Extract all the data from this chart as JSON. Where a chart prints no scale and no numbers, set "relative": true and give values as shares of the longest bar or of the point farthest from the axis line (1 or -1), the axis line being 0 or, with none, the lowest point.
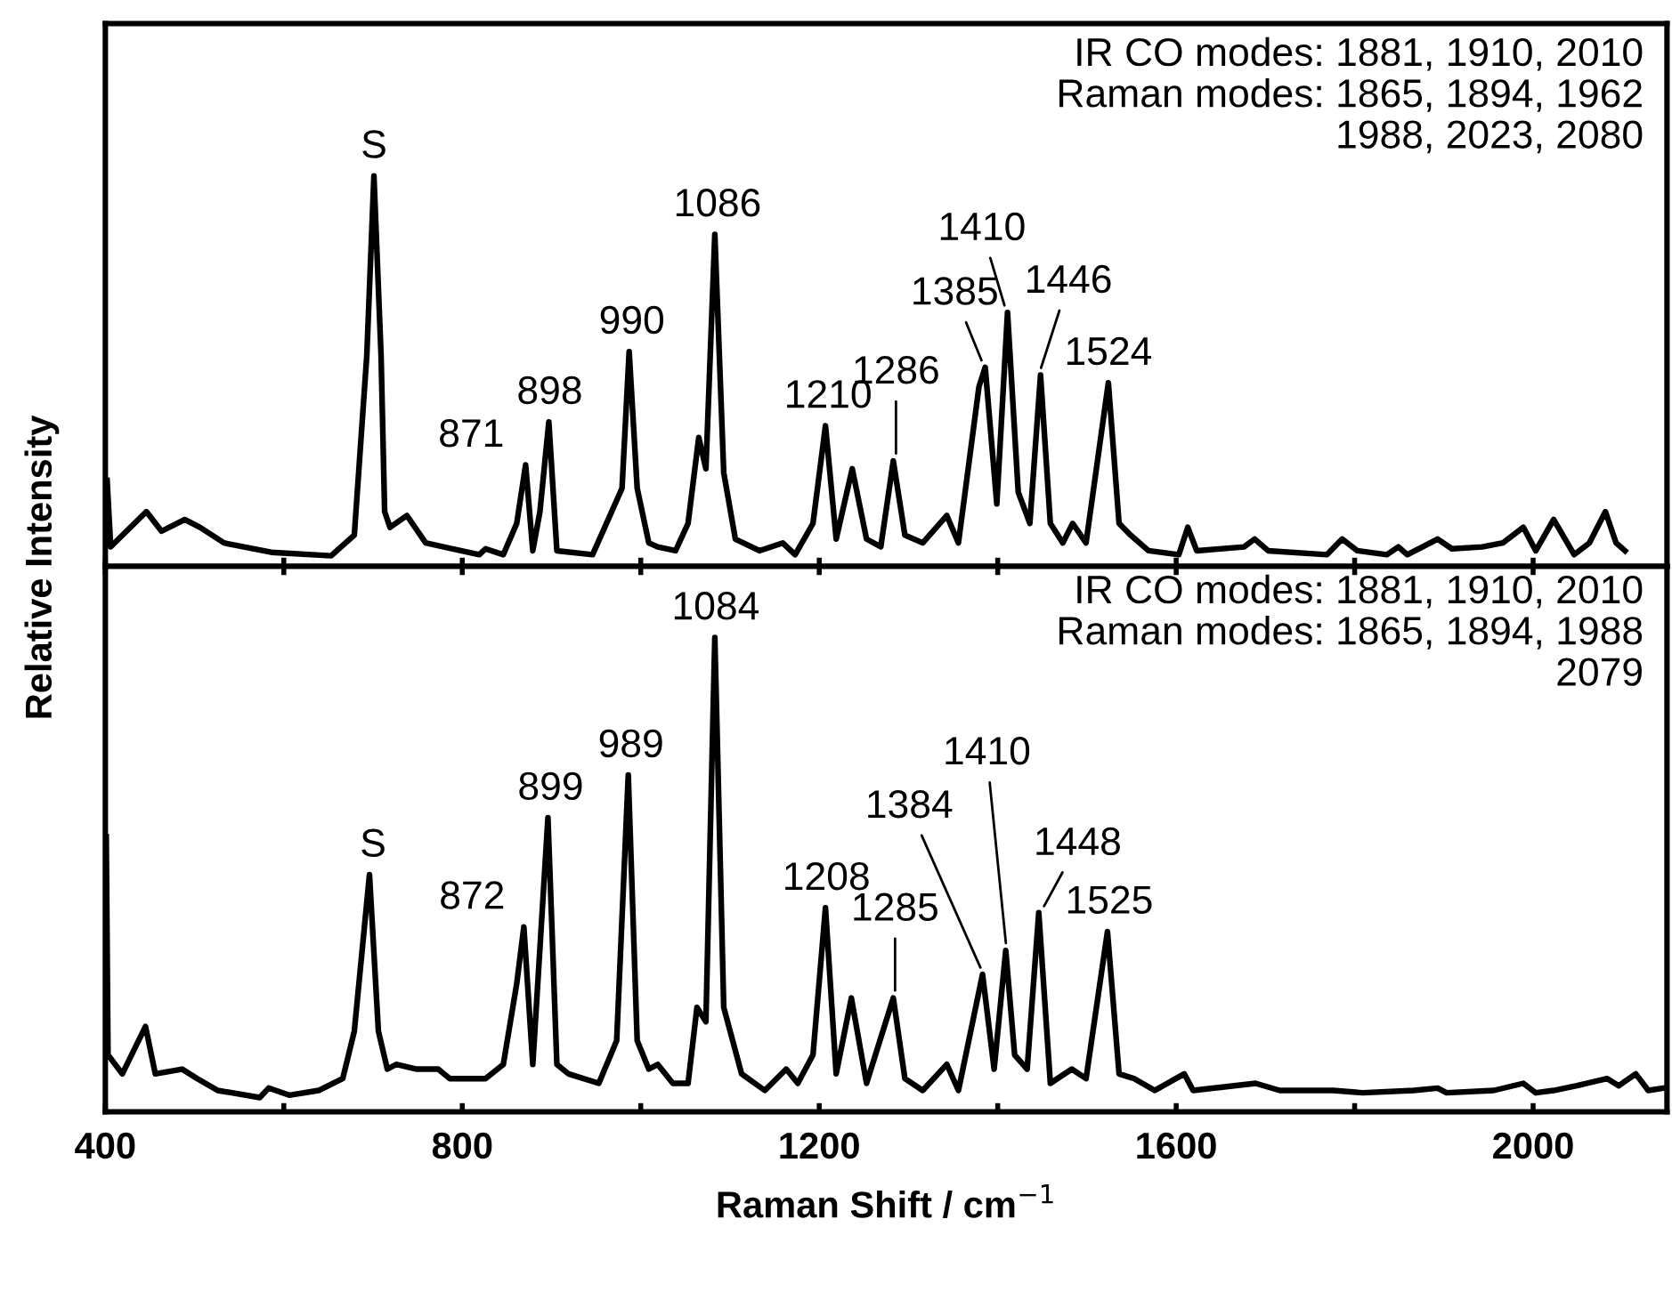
{
  "chart_data": [
    {
      "type": "line",
      "relative": true,
      "ylabel": "Relative Intensity",
      "xlim": [
        400,
        2150
      ],
      "xticks": [
        400,
        {
          "value": 600,
          "label": null
        },
        800,
        {
          "value": 1000,
          "label": null
        },
        1200,
        {
          "value": 1400,
          "label": null
        },
        1600,
        {
          "value": 1800,
          "label": null
        },
        2000
      ],
      "tick_labels": false,
      "grid": false,
      "marker": "none",
      "line_style": "solid",
      "series": [
        {
          "color": "#000000",
          "x": [
            402,
            406,
            446,
            463,
            489,
            506,
            533,
            586,
            653,
            679,
            693,
            701,
            709,
            713,
            719,
            738,
            759,
            819,
            826,
            846,
            861,
            871,
            879,
            887,
            897,
            906,
            946,
            979,
            987,
            996,
            1009,
            1019,
            1039,
            1053,
            1065,
            1073,
            1083,
            1093,
            1106,
            1133,
            1159,
            1173,
            1193,
            1207,
            1219,
            1237,
            1253,
            1269,
            1283,
            1296,
            1316,
            1343,
            1356,
            1379,
            1386,
            1399,
            1411,
            1423,
            1436,
            1448,
            1459,
            1473,
            1484,
            1499,
            1524,
            1536,
            1549,
            1569,
            1603,
            1613,
            1623,
            1676,
            1688,
            1703,
            1769,
            1786,
            1803,
            1836,
            1849,
            1859,
            1893,
            1909,
            1943,
            1966,
            1989,
            2003,
            2023,
            2046,
            2063,
            2081,
            2093,
            2103
          ],
          "values": [
            0.22,
            0.05,
            0.14,
            0.09,
            0.12,
            0.1,
            0.06,
            0.036,
            0.027,
            0.08,
            0.54,
            1.0,
            0.54,
            0.14,
            0.1,
            0.13,
            0.06,
            0.03,
            0.045,
            0.03,
            0.11,
            0.26,
            0.04,
            0.14,
            0.37,
            0.04,
            0.03,
            0.2,
            0.55,
            0.2,
            0.06,
            0.05,
            0.04,
            0.11,
            0.33,
            0.25,
            0.85,
            0.24,
            0.07,
            0.04,
            0.06,
            0.03,
            0.11,
            0.36,
            0.07,
            0.25,
            0.07,
            0.05,
            0.27,
            0.08,
            0.06,
            0.13,
            0.06,
            0.46,
            0.51,
            0.16,
            0.65,
            0.19,
            0.11,
            0.49,
            0.11,
            0.06,
            0.11,
            0.06,
            0.47,
            0.11,
            0.08,
            0.04,
            0.03,
            0.1,
            0.04,
            0.05,
            0.07,
            0.04,
            0.03,
            0.07,
            0.04,
            0.03,
            0.05,
            0.03,
            0.07,
            0.045,
            0.05,
            0.06,
            0.1,
            0.04,
            0.12,
            0.03,
            0.06,
            0.14,
            0.06,
            0.04
          ]
        }
      ],
      "annotations": [
        {
          "text": "S",
          "x": 701,
          "y": 1.0
        },
        {
          "text": "871",
          "x": 871,
          "y": 0.26
        },
        {
          "text": "898",
          "x": 898,
          "y": 0.37
        },
        {
          "text": "990",
          "x": 990,
          "y": 0.55
        },
        {
          "text": "1086",
          "x": 1086,
          "y": 0.85
        },
        {
          "text": "1210",
          "x": 1210,
          "y": 0.36
        },
        {
          "text": "1286",
          "x": 1286,
          "y": 0.27
        },
        {
          "text": "1385",
          "x": 1385,
          "y": 0.51
        },
        {
          "text": "1410",
          "x": 1410,
          "y": 0.65
        },
        {
          "text": "1446",
          "x": 1446,
          "y": 0.49
        },
        {
          "text": "1524",
          "x": 1524,
          "y": 0.47
        },
        "IR CO modes: 1881, 1910, 2010\nRaman modes: 1865, 1894, 1962\n1988, 2023, 2080"
      ]
    },
    {
      "type": "line",
      "relative": true,
      "xlabel": "Raman Shift / cm$^{−1}$",
      "xlim": [
        400,
        2150
      ],
      "xticks": [
        400,
        {
          "value": 600,
          "label": null
        },
        800,
        {
          "value": 1000,
          "label": null
        },
        1200,
        {
          "value": 1400,
          "label": null
        },
        1600,
        {
          "value": 1800,
          "label": null
        },
        2000
      ],
      "tick_labels": "x",
      "grid": false,
      "marker": "none",
      "line_style": "solid",
      "series": [
        {
          "color": "#000000",
          "x": [
            401,
            403,
            419,
            445,
            456,
            486,
            503,
            526,
            573,
            583,
            606,
            639,
            666,
            679,
            696,
            706,
            716,
            726,
            749,
            773,
            786,
            806,
            826,
            846,
            861,
            869,
            879,
            896,
            906,
            919,
            953,
            973,
            986,
            996,
            1009,
            1019,
            1036,
            1053,
            1063,
            1073,
            1083,
            1093,
            1113,
            1139,
            1163,
            1176,
            1193,
            1207,
            1219,
            1236,
            1253,
            1283,
            1296,
            1316,
            1343,
            1356,
            1383,
            1396,
            1409,
            1419,
            1433,
            1446,
            1459,
            1483,
            1499,
            1523,
            1536,
            1553,
            1576,
            1609,
            1619,
            1689,
            1716,
            1776,
            1809,
            1866,
            1893,
            1903,
            1956,
            1989,
            2003,
            2023,
            2049,
            2083,
            2096,
            2115,
            2129,
            2146
          ],
          "values": [
            0.58,
            0.12,
            0.08,
            0.18,
            0.08,
            0.09,
            0.07,
            0.045,
            0.03,
            0.05,
            0.035,
            0.045,
            0.07,
            0.17,
            0.5,
            0.17,
            0.09,
            0.1,
            0.09,
            0.09,
            0.07,
            0.07,
            0.07,
            0.1,
            0.27,
            0.39,
            0.1,
            0.62,
            0.1,
            0.08,
            0.06,
            0.15,
            0.71,
            0.15,
            0.09,
            0.1,
            0.06,
            0.06,
            0.22,
            0.19,
            1.0,
            0.22,
            0.08,
            0.045,
            0.09,
            0.06,
            0.12,
            0.43,
            0.08,
            0.24,
            0.06,
            0.24,
            0.07,
            0.045,
            0.1,
            0.045,
            0.29,
            0.09,
            0.34,
            0.12,
            0.09,
            0.42,
            0.06,
            0.09,
            0.07,
            0.38,
            0.08,
            0.07,
            0.045,
            0.08,
            0.045,
            0.06,
            0.045,
            0.045,
            0.04,
            0.045,
            0.05,
            0.04,
            0.045,
            0.06,
            0.04,
            0.045,
            0.055,
            0.07,
            0.055,
            0.08,
            0.045,
            0.05
          ]
        }
      ],
      "annotations": [
        {
          "text": "S",
          "x": 700,
          "y": 0.5
        },
        {
          "text": "872",
          "x": 872,
          "y": 0.39
        },
        {
          "text": "899",
          "x": 899,
          "y": 0.62
        },
        {
          "text": "989",
          "x": 989,
          "y": 0.71
        },
        {
          "text": "1084",
          "x": 1084,
          "y": 1.0
        },
        {
          "text": "1208",
          "x": 1208,
          "y": 0.43
        },
        {
          "text": "1285",
          "x": 1285,
          "y": 0.24
        },
        {
          "text": "1384",
          "x": 1384,
          "y": 0.29
        },
        {
          "text": "1410",
          "x": 1410,
          "y": 0.34
        },
        {
          "text": "1448",
          "x": 1448,
          "y": 0.42
        },
        {
          "text": "1525",
          "x": 1525,
          "y": 0.38
        },
        "IR CO modes: 1881, 1910, 2010\nRaman modes: 1865, 1894, 1988\n2079"
      ]
    }
  ]
}
